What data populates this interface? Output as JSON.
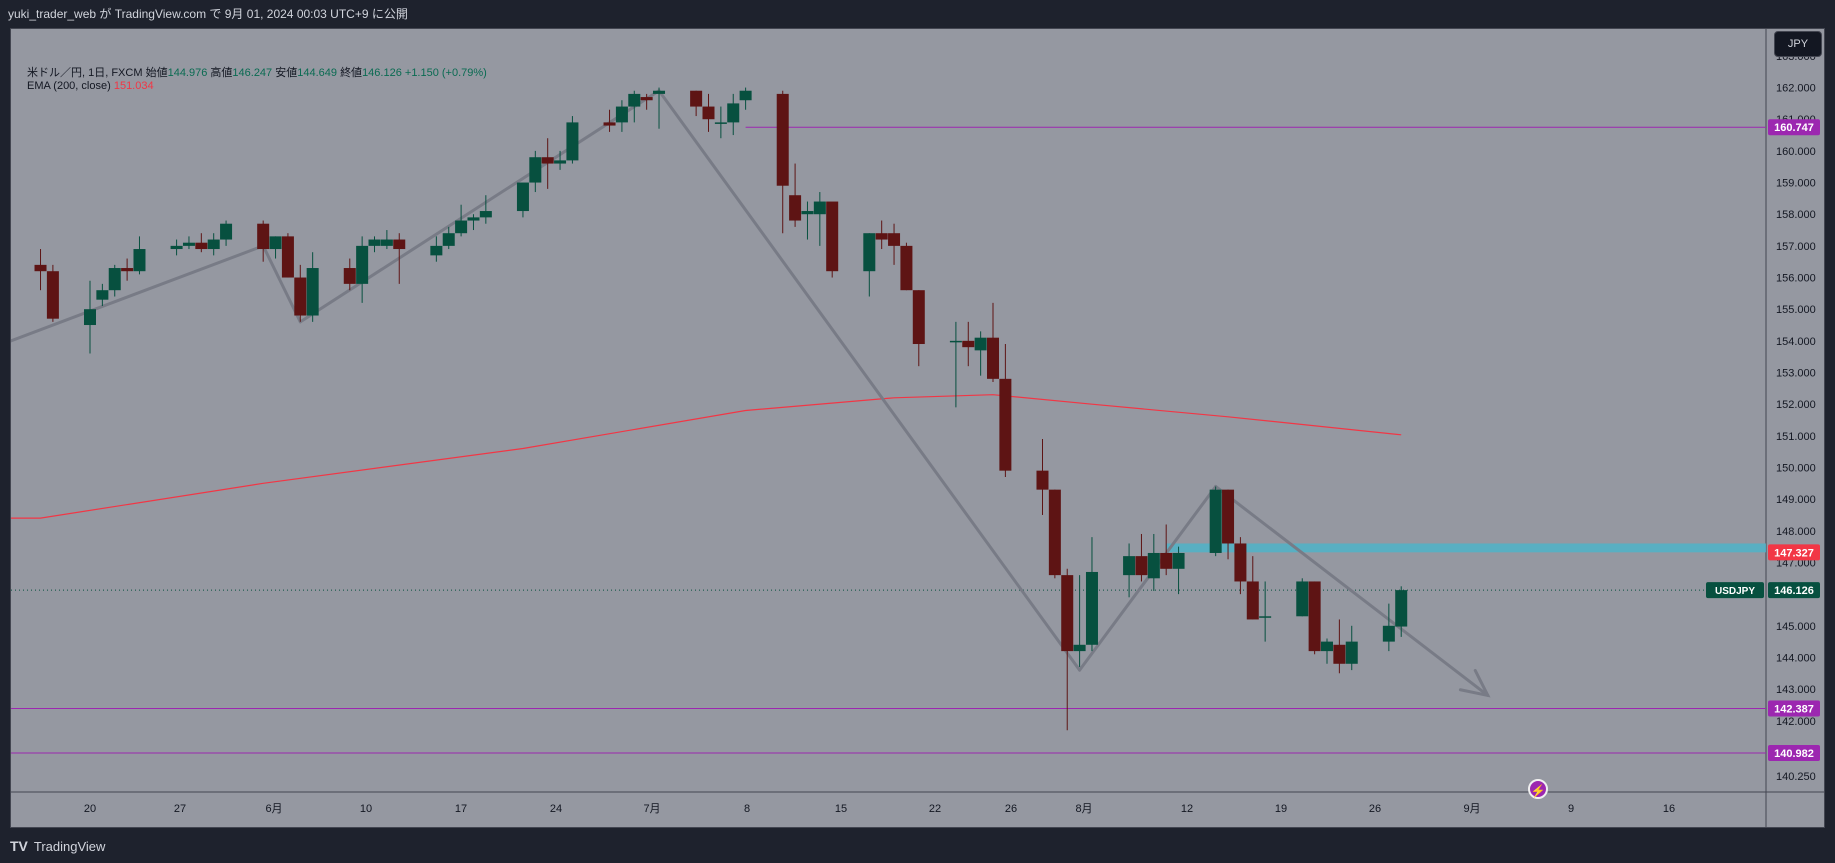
{
  "header": {
    "published_by": "yuki_trader_web が TradingView.com で 9月 01, 2024 00:03 UTC+9 に公開"
  },
  "legend": {
    "symbol": "米ドル／円, 1日, FXCM",
    "open_label": "始値",
    "open": "144.976",
    "high_label": "高値",
    "high": "146.247",
    "low_label": "安値",
    "low": "144.649",
    "close_label": "終値",
    "close": "146.126",
    "change": "+1.150 (+0.79%)",
    "ema_label": "EMA (200, close)",
    "ema_value": "151.034"
  },
  "currency_button": "JPY",
  "footer": {
    "brand": "TradingView",
    "logo": "TV"
  },
  "colors": {
    "background": "#9598a1",
    "up": "#07503f",
    "down": "#5e1414",
    "ema": "#f23645",
    "level": "#9c27b0",
    "zone": "#4fb3c8",
    "trend": "#787b86"
  },
  "chart_data": {
    "type": "candlestick",
    "symbol": "USDJPY",
    "timeframe": "1D",
    "x_axis_ticks": [
      "20",
      "27",
      "6月",
      "10",
      "17",
      "24",
      "7月",
      "8",
      "15",
      "22",
      "26",
      "8月",
      "12",
      "19",
      "26",
      "9月",
      "9",
      "16"
    ],
    "y_axis_ticks": [
      "163.000",
      "162.000",
      "161.000",
      "160.000",
      "159.000",
      "158.000",
      "157.000",
      "156.000",
      "155.000",
      "154.000",
      "153.000",
      "152.000",
      "151.000",
      "150.000",
      "149.000",
      "148.000",
      "147.000",
      "146.000",
      "145.000",
      "144.000",
      "143.000",
      "142.000",
      "141.000",
      "140.250"
    ],
    "ylim": [
      139.75,
      163.85
    ],
    "candles": [
      {
        "date": "2024-05-16",
        "o": 156.4,
        "h": 156.9,
        "l": 155.6,
        "c": 156.2
      },
      {
        "date": "2024-05-17",
        "o": 156.2,
        "h": 156.4,
        "l": 154.6,
        "c": 154.7
      },
      {
        "date": "2024-05-20",
        "o": 154.5,
        "h": 155.9,
        "l": 153.6,
        "c": 155.0
      },
      {
        "date": "2024-05-21",
        "o": 155.3,
        "h": 155.8,
        "l": 155.1,
        "c": 155.6
      },
      {
        "date": "2024-05-22",
        "o": 155.6,
        "h": 156.4,
        "l": 155.4,
        "c": 156.3
      },
      {
        "date": "2024-05-23",
        "o": 156.3,
        "h": 156.6,
        "l": 155.9,
        "c": 156.2
      },
      {
        "date": "2024-05-24",
        "o": 156.2,
        "h": 157.3,
        "l": 156.1,
        "c": 156.9
      },
      {
        "date": "2024-05-27",
        "o": 156.9,
        "h": 157.2,
        "l": 156.7,
        "c": 157.0
      },
      {
        "date": "2024-05-28",
        "o": 157.0,
        "h": 157.3,
        "l": 156.9,
        "c": 157.1
      },
      {
        "date": "2024-05-29",
        "o": 157.1,
        "h": 157.4,
        "l": 156.8,
        "c": 156.9
      },
      {
        "date": "2024-05-30",
        "o": 156.9,
        "h": 157.4,
        "l": 156.7,
        "c": 157.2
      },
      {
        "date": "2024-05-31",
        "o": 157.2,
        "h": 157.8,
        "l": 157.0,
        "c": 157.7
      },
      {
        "date": "2024-06-03",
        "o": 157.7,
        "h": 157.8,
        "l": 156.5,
        "c": 156.9
      },
      {
        "date": "2024-06-04",
        "o": 156.9,
        "h": 157.3,
        "l": 156.6,
        "c": 157.3
      },
      {
        "date": "2024-06-05",
        "o": 157.3,
        "h": 157.4,
        "l": 156.0,
        "c": 156.0
      },
      {
        "date": "2024-06-06",
        "o": 156.0,
        "h": 156.4,
        "l": 154.6,
        "c": 154.8
      },
      {
        "date": "2024-06-07",
        "o": 154.8,
        "h": 156.8,
        "l": 154.6,
        "c": 156.3
      },
      {
        "date": "2024-06-10",
        "o": 156.3,
        "h": 156.6,
        "l": 155.6,
        "c": 155.8
      },
      {
        "date": "2024-06-11",
        "o": 155.8,
        "h": 157.3,
        "l": 155.2,
        "c": 157.0
      },
      {
        "date": "2024-06-12",
        "o": 157.0,
        "h": 157.3,
        "l": 156.8,
        "c": 157.2
      },
      {
        "date": "2024-06-13",
        "o": 157.0,
        "h": 157.5,
        "l": 156.9,
        "c": 157.2
      },
      {
        "date": "2024-06-14",
        "o": 157.2,
        "h": 157.4,
        "l": 155.8,
        "c": 156.9
      },
      {
        "date": "2024-06-17",
        "o": 156.7,
        "h": 157.3,
        "l": 156.5,
        "c": 157.0
      },
      {
        "date": "2024-06-18",
        "o": 157.0,
        "h": 157.6,
        "l": 156.9,
        "c": 157.4
      },
      {
        "date": "2024-06-19",
        "o": 157.4,
        "h": 158.3,
        "l": 157.3,
        "c": 157.8
      },
      {
        "date": "2024-06-20",
        "o": 157.8,
        "h": 158.0,
        "l": 157.5,
        "c": 157.9
      },
      {
        "date": "2024-06-21",
        "o": 157.9,
        "h": 158.6,
        "l": 157.7,
        "c": 158.1
      },
      {
        "date": "2024-06-24",
        "o": 158.1,
        "h": 158.9,
        "l": 157.9,
        "c": 159.0
      },
      {
        "date": "2024-06-25",
        "o": 159.0,
        "h": 160.0,
        "l": 158.7,
        "c": 159.8
      },
      {
        "date": "2024-06-26",
        "o": 159.8,
        "h": 160.4,
        "l": 158.8,
        "c": 159.6
      },
      {
        "date": "2024-06-27",
        "o": 159.6,
        "h": 160.0,
        "l": 159.4,
        "c": 159.7
      },
      {
        "date": "2024-06-28",
        "o": 159.7,
        "h": 161.1,
        "l": 159.6,
        "c": 160.9
      },
      {
        "date": "2024-07-01",
        "o": 160.9,
        "h": 161.3,
        "l": 160.6,
        "c": 160.8
      },
      {
        "date": "2024-07-02",
        "o": 160.9,
        "h": 161.6,
        "l": 160.6,
        "c": 161.4
      },
      {
        "date": "2024-07-03",
        "o": 161.4,
        "h": 161.9,
        "l": 160.9,
        "c": 161.8
      },
      {
        "date": "2024-07-04",
        "o": 161.7,
        "h": 161.8,
        "l": 161.3,
        "c": 161.6
      },
      {
        "date": "2024-07-05",
        "o": 161.8,
        "h": 162.0,
        "l": 160.7,
        "c": 161.9
      },
      {
        "date": "2024-07-08",
        "o": 161.9,
        "h": 161.9,
        "l": 161.1,
        "c": 161.4
      },
      {
        "date": "2024-07-09",
        "o": 161.4,
        "h": 161.8,
        "l": 160.6,
        "c": 161.0
      },
      {
        "date": "2024-07-10",
        "o": 160.9,
        "h": 161.4,
        "l": 160.4,
        "c": 160.9
      },
      {
        "date": "2024-07-11",
        "o": 160.9,
        "h": 161.8,
        "l": 160.5,
        "c": 161.5
      },
      {
        "date": "2024-07-12",
        "o": 161.6,
        "h": 162.0,
        "l": 161.3,
        "c": 161.9
      },
      {
        "date": "2024-07-15",
        "o": 161.8,
        "h": 161.9,
        "l": 157.4,
        "c": 158.9
      },
      {
        "date": "2024-07-16",
        "o": 158.6,
        "h": 159.6,
        "l": 157.6,
        "c": 157.8
      },
      {
        "date": "2024-07-17",
        "o": 158.0,
        "h": 158.4,
        "l": 157.2,
        "c": 158.1
      },
      {
        "date": "2024-07-18",
        "o": 158.0,
        "h": 158.7,
        "l": 157.0,
        "c": 158.4
      },
      {
        "date": "2024-07-19",
        "o": 158.4,
        "h": 158.3,
        "l": 156.0,
        "c": 156.2
      },
      {
        "date": "2024-07-22",
        "o": 156.2,
        "h": 157.4,
        "l": 155.4,
        "c": 157.4
      },
      {
        "date": "2024-07-23",
        "o": 157.4,
        "h": 157.8,
        "l": 156.9,
        "c": 157.2
      },
      {
        "date": "2024-07-24",
        "o": 157.4,
        "h": 157.7,
        "l": 156.4,
        "c": 157.0
      },
      {
        "date": "2024-07-25",
        "o": 157.0,
        "h": 157.1,
        "l": 155.6,
        "c": 155.6
      },
      {
        "date": "2024-07-26",
        "o": 155.6,
        "h": 155.6,
        "l": 153.2,
        "c": 153.9
      },
      {
        "date": "2024-07-29",
        "o": 154.0,
        "h": 154.6,
        "l": 151.9,
        "c": 154.0
      },
      {
        "date": "2024-07-30",
        "o": 154.0,
        "h": 154.6,
        "l": 153.2,
        "c": 153.8
      },
      {
        "date": "2024-07-31",
        "o": 153.7,
        "h": 154.3,
        "l": 152.9,
        "c": 154.1
      },
      {
        "date": "2024-08-01",
        "o": 154.1,
        "h": 155.2,
        "l": 152.7,
        "c": 152.8
      },
      {
        "date": "2024-08-02",
        "o": 152.8,
        "h": 153.9,
        "l": 149.7,
        "c": 149.9
      },
      {
        "date": "2024-08-05",
        "o": 149.9,
        "h": 150.9,
        "l": 148.5,
        "c": 149.3
      },
      {
        "date": "2024-08-06",
        "o": 149.3,
        "h": 149.3,
        "l": 146.5,
        "c": 146.6
      },
      {
        "date": "2024-08-07",
        "o": 146.6,
        "h": 146.8,
        "l": 141.7,
        "c": 144.2
      },
      {
        "date": "2024-08-08",
        "o": 144.2,
        "h": 146.6,
        "l": 143.7,
        "c": 144.4
      },
      {
        "date": "2024-08-09",
        "o": 144.4,
        "h": 147.8,
        "l": 144.2,
        "c": 146.7
      },
      {
        "date": "2024-08-12",
        "o": 146.6,
        "h": 147.6,
        "l": 145.9,
        "c": 147.2
      },
      {
        "date": "2024-08-13",
        "o": 147.2,
        "h": 147.9,
        "l": 146.4,
        "c": 146.6
      },
      {
        "date": "2024-08-14",
        "o": 146.5,
        "h": 147.9,
        "l": 146.1,
        "c": 147.3
      },
      {
        "date": "2024-08-15",
        "o": 147.3,
        "h": 148.2,
        "l": 146.6,
        "c": 146.8
      },
      {
        "date": "2024-08-16",
        "o": 146.8,
        "h": 147.5,
        "l": 146.0,
        "c": 147.3
      },
      {
        "date": "2024-08-19",
        "o": 147.3,
        "h": 149.4,
        "l": 147.2,
        "c": 149.3
      },
      {
        "date": "2024-08-20",
        "o": 149.3,
        "h": 149.3,
        "l": 147.1,
        "c": 147.6
      },
      {
        "date": "2024-08-21",
        "o": 147.6,
        "h": 147.8,
        "l": 146.0,
        "c": 146.4
      },
      {
        "date": "2024-08-22",
        "o": 146.4,
        "h": 147.2,
        "l": 145.2,
        "c": 145.2
      },
      {
        "date": "2024-08-23",
        "o": 145.3,
        "h": 146.4,
        "l": 144.5,
        "c": 145.3
      },
      {
        "date": "2024-08-26",
        "o": 145.3,
        "h": 146.5,
        "l": 145.3,
        "c": 146.4
      },
      {
        "date": "2024-08-27",
        "o": 146.4,
        "h": 146.4,
        "l": 144.1,
        "c": 144.2
      },
      {
        "date": "2024-08-28",
        "o": 144.2,
        "h": 144.6,
        "l": 143.8,
        "c": 144.5
      },
      {
        "date": "2024-08-29",
        "o": 144.4,
        "h": 145.2,
        "l": 143.5,
        "c": 143.8
      },
      {
        "date": "2024-08-30",
        "o": 143.8,
        "h": 145.0,
        "l": 143.6,
        "c": 144.5
      },
      {
        "date": "2024-09-02",
        "o": 144.5,
        "h": 145.7,
        "l": 144.2,
        "c": 145.0
      },
      {
        "date": "2024-09-03",
        "o": 144.976,
        "h": 146.247,
        "l": 144.649,
        "c": 146.126
      }
    ],
    "ema": {
      "name": "EMA (200, close)",
      "points": [
        {
          "date": "2024-05-16",
          "v": 148.4
        },
        {
          "date": "2024-06-03",
          "v": 149.5
        },
        {
          "date": "2024-06-24",
          "v": 150.6
        },
        {
          "date": "2024-07-12",
          "v": 151.8
        },
        {
          "date": "2024-07-24",
          "v": 152.2
        },
        {
          "date": "2024-08-01",
          "v": 152.3
        },
        {
          "date": "2024-08-09",
          "v": 152.0
        },
        {
          "date": "2024-08-20",
          "v": 151.6
        },
        {
          "date": "2024-09-03",
          "v": 151.034
        }
      ]
    },
    "horizontal_levels": [
      {
        "label": "160.747",
        "value": 160.747,
        "color": "#9c27b0",
        "from": "2024-07-12"
      },
      {
        "label": "142.387",
        "value": 142.387,
        "color": "#9c27b0"
      },
      {
        "label": "140.982",
        "value": 140.982,
        "color": "#9c27b0"
      }
    ],
    "zone": {
      "label": "147.327",
      "from_value": 147.32,
      "to_value": 147.6,
      "from": "2024-08-15",
      "color": "#4fb3c8",
      "label_color": "#f23645"
    },
    "current_price": {
      "symbol": "USDJPY",
      "label": "146.126",
      "value": 146.126
    },
    "trend_lines": [
      {
        "from": {
          "date": "2024-05-13",
          "v": 154.0
        },
        "to": {
          "date": "2024-06-03",
          "v": 157.0
        }
      },
      {
        "from": {
          "date": "2024-06-03",
          "v": 157.0
        },
        "to": {
          "date": "2024-06-06",
          "v": 154.6
        }
      },
      {
        "from": {
          "date": "2024-06-06",
          "v": 154.6
        },
        "to": {
          "date": "2024-07-05",
          "v": 161.9
        }
      },
      {
        "from": {
          "date": "2024-07-05",
          "v": 161.9
        },
        "to": {
          "date": "2024-08-08",
          "v": 143.6
        }
      },
      {
        "from": {
          "date": "2024-08-08",
          "v": 143.6
        },
        "to": {
          "date": "2024-08-19",
          "v": 149.4
        }
      },
      {
        "from": {
          "date": "2024-08-19",
          "v": 149.4
        },
        "to": {
          "date": "2024-09-10",
          "v": 142.8
        },
        "arrow": true
      }
    ]
  }
}
